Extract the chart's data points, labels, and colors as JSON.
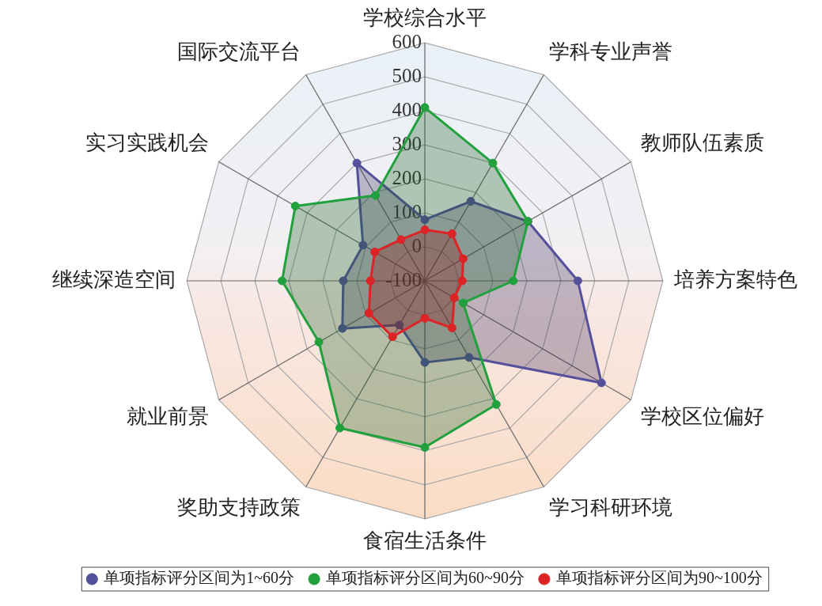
{
  "chart_data": {
    "type": "radar",
    "categories": [
      "学校综合水平",
      "学科专业声誉",
      "教师队伍素质",
      "培养方案特色",
      "学校区位偏好",
      "学习科研环境",
      "食宿生活条件",
      "奖助支持政策",
      "就业前景",
      "继续深造空间",
      "实习实践机会",
      "国际交流平台"
    ],
    "series": [
      {
        "name": "单项指标评分区间为1~60分",
        "color": "#55509c",
        "values": [
          80,
          170,
          250,
          350,
          500,
          160,
          140,
          50,
          180,
          140,
          110,
          300
        ]
      },
      {
        "name": "单项指标评分区间为60~90分",
        "color": "#21a03e",
        "values": [
          410,
          300,
          250,
          160,
          30,
          320,
          390,
          400,
          260,
          320,
          340,
          190
        ]
      },
      {
        "name": "单项指标评分区间为90~100分",
        "color": "#dc2326",
        "values": [
          50,
          60,
          30,
          10,
          0,
          60,
          10,
          90,
          90,
          60,
          70,
          40
        ]
      }
    ],
    "ylim": [
      -100,
      600
    ],
    "yticks": [
      -100,
      0,
      100,
      200,
      300,
      400,
      500,
      600
    ],
    "grid": true,
    "legend": "bottom",
    "marker": "circle"
  }
}
